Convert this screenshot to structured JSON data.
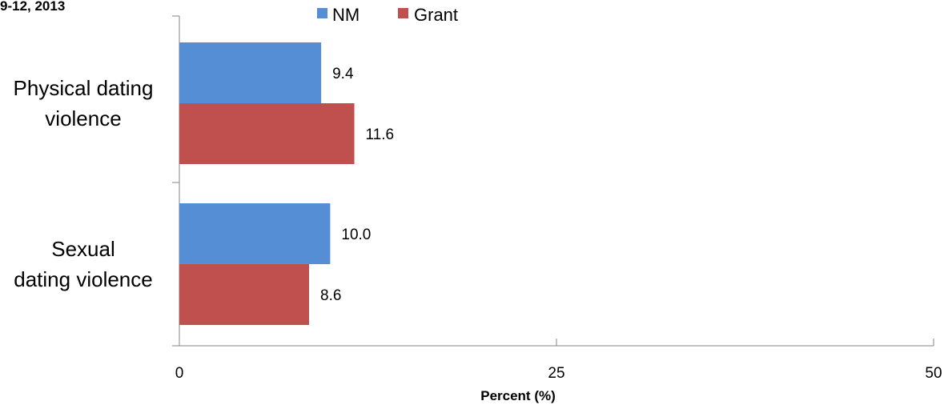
{
  "title_fragment": "9-12, 2013",
  "colors": {
    "NM": "#558ED5",
    "Grant": "#C0504D"
  },
  "chart_data": {
    "type": "bar",
    "orientation": "horizontal",
    "categories": [
      [
        "Physical dating",
        "violence"
      ],
      [
        "Sexual",
        "dating violence"
      ]
    ],
    "series": [
      {
        "name": "NM",
        "values": [
          9.4,
          10.0
        ]
      },
      {
        "name": "Grant",
        "values": [
          11.6,
          8.6
        ]
      }
    ],
    "data_labels": [
      [
        "9.4",
        "10.0"
      ],
      [
        "11.6",
        "8.6"
      ]
    ],
    "xlabel": "Percent (%)",
    "xlim": [
      0,
      50
    ],
    "xticks": [
      0,
      25,
      50
    ],
    "legend_position": "top-center",
    "grid": false
  }
}
